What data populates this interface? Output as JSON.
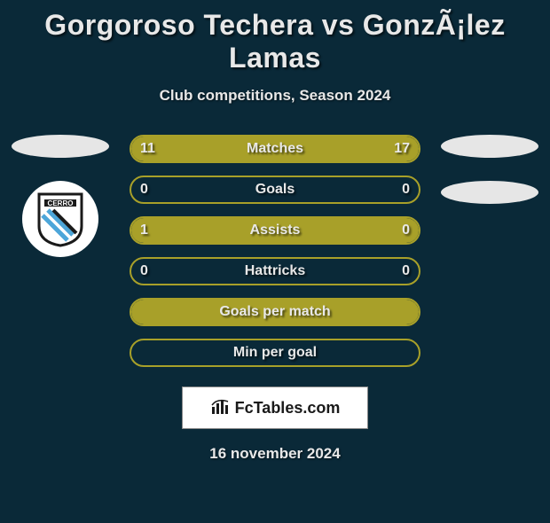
{
  "title_left": "Gorgoroso Techera",
  "title_vs": "vs",
  "title_right": "GonzÃ¡lez Lamas",
  "subtitle": "Club competitions, Season 2024",
  "colors": {
    "background": "#0a2938",
    "border": "#a8a029",
    "fill_left": "#a8a029",
    "fill_right": "#a8a029",
    "text": "#e8e8e8",
    "ellipse": "#e6e6e6",
    "branding_bg": "#ffffff"
  },
  "bars": [
    {
      "label": "Matches",
      "left": "11",
      "right": "17",
      "left_pct": 39,
      "right_pct": 61,
      "show_vals": true
    },
    {
      "label": "Goals",
      "left": "0",
      "right": "0",
      "left_pct": 0,
      "right_pct": 0,
      "show_vals": true
    },
    {
      "label": "Assists",
      "left": "1",
      "right": "0",
      "left_pct": 80,
      "right_pct": 20,
      "show_vals": true
    },
    {
      "label": "Hattricks",
      "left": "0",
      "right": "0",
      "left_pct": 0,
      "right_pct": 0,
      "show_vals": true
    },
    {
      "label": "Goals per match",
      "left": "",
      "right": "",
      "left_pct": 100,
      "right_pct": 0,
      "show_vals": false
    },
    {
      "label": "Min per goal",
      "left": "",
      "right": "",
      "left_pct": 0,
      "right_pct": 0,
      "show_vals": false
    }
  ],
  "branding": "FcTables.com",
  "footer_date": "16 november 2024"
}
